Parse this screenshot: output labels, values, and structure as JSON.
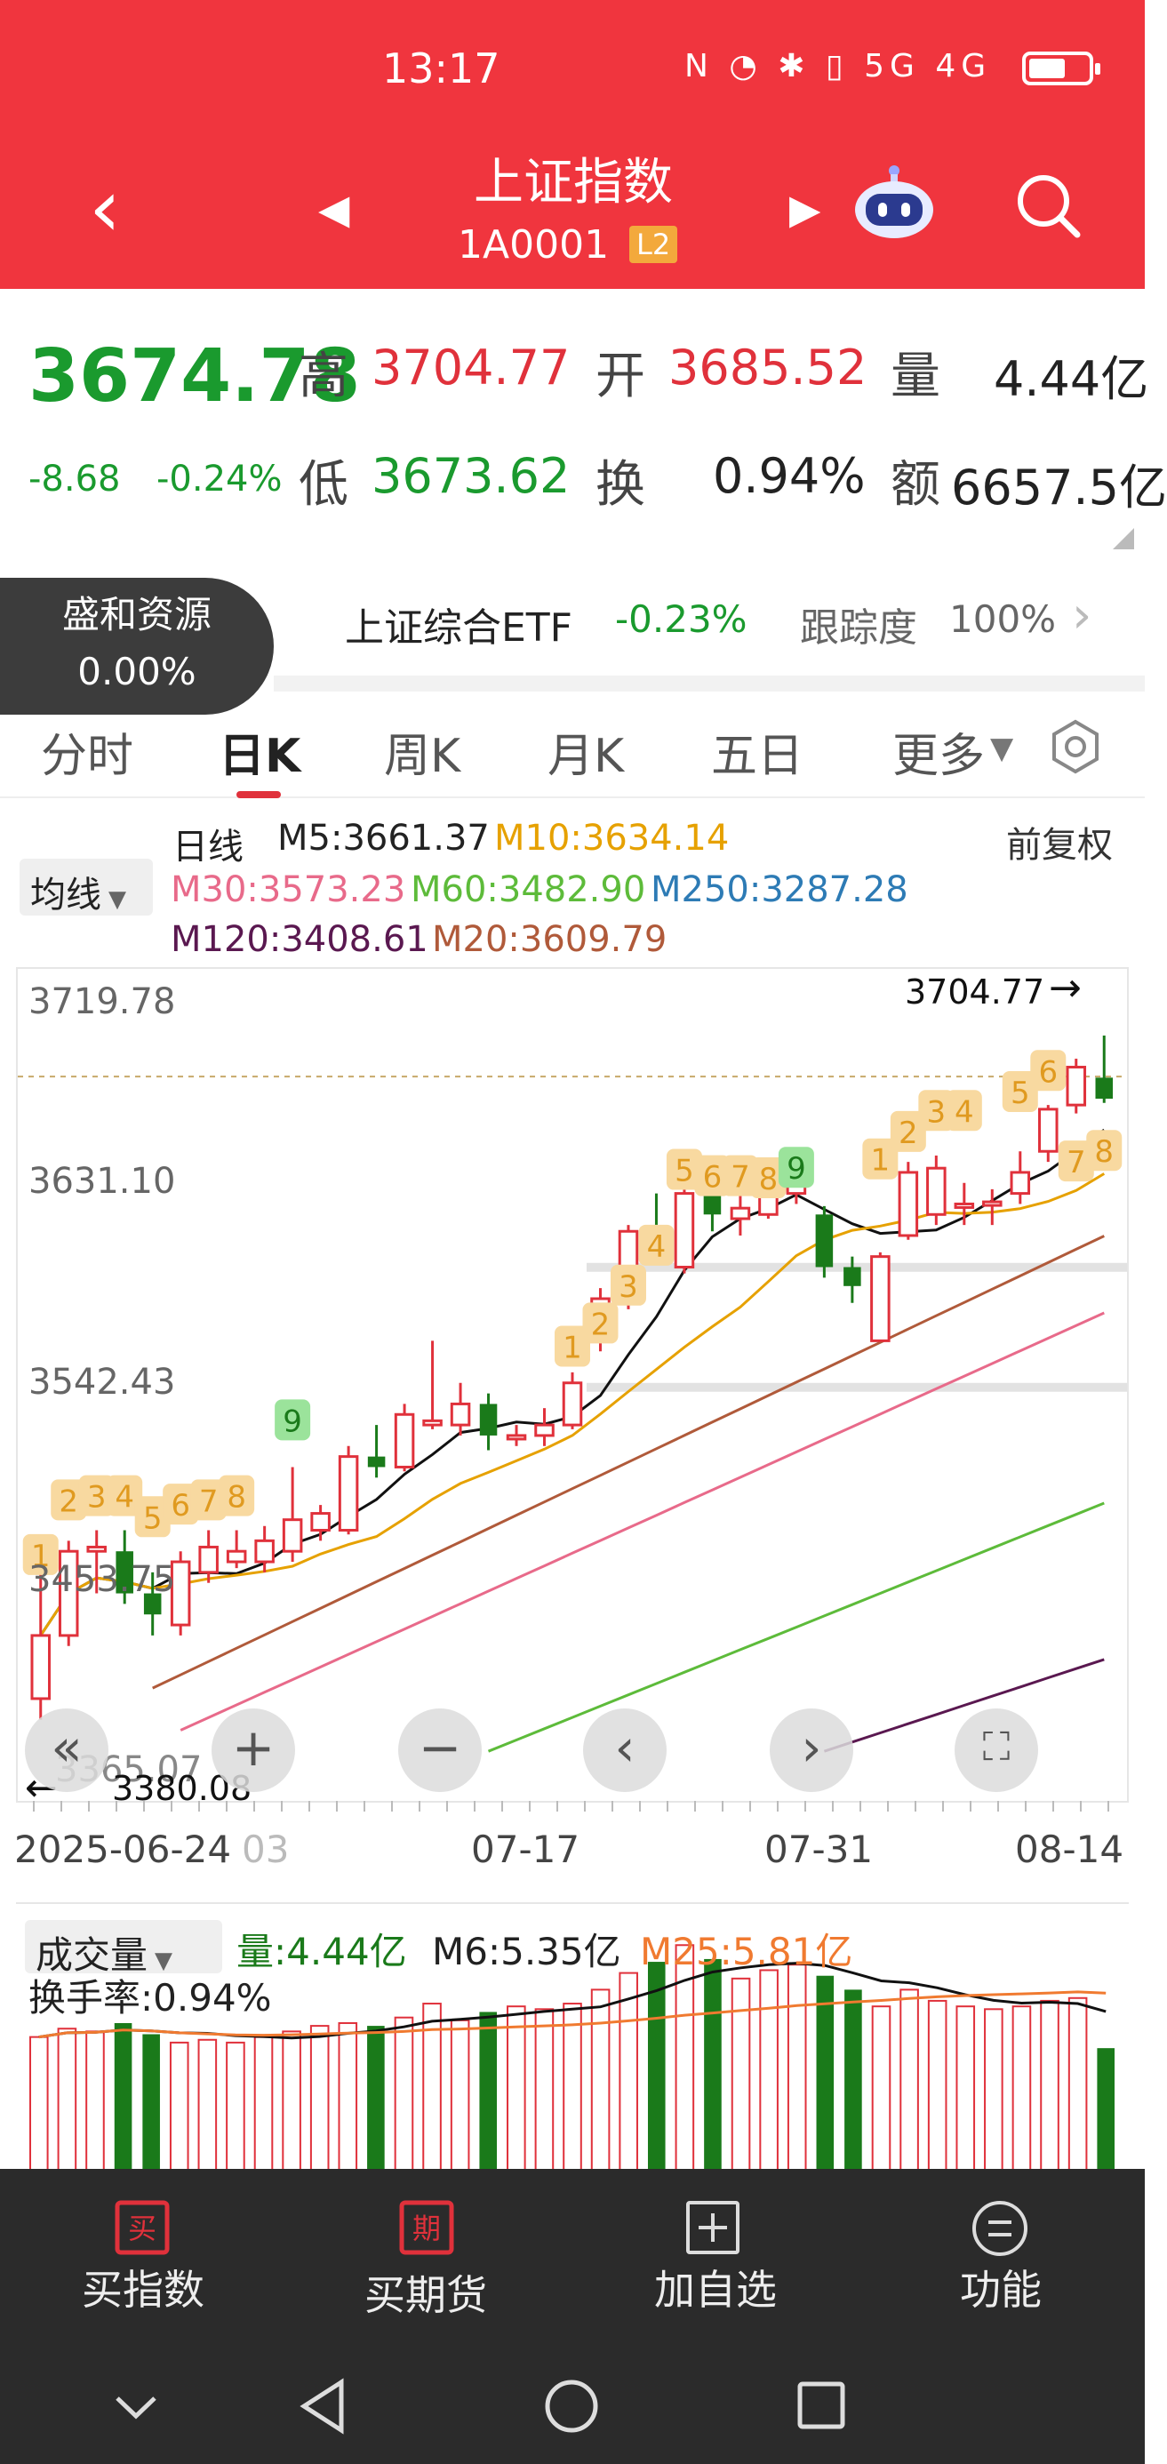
{
  "status_bar": {
    "time": "13:17",
    "icons": "N ◔ ✱ ▯ 5G 4G"
  },
  "header": {
    "title": "上证指数",
    "code": "1A0001",
    "badge": "L2"
  },
  "quote": {
    "price": "3674.78",
    "change": "-8.68",
    "change_pct": "-0.24%",
    "high_label": "高",
    "high": "3704.77",
    "open_label": "开",
    "open": "3685.52",
    "volume_label": "量",
    "volume": "4.44亿",
    "low_label": "低",
    "low": "3673.62",
    "turnover_label": "换",
    "turnover": "0.94%",
    "amount_label": "额",
    "amount": "6657.5亿"
  },
  "etf": {
    "badge_name": "盛和资源",
    "badge_pct": "0.00%",
    "name": "上证综合ETF",
    "change": "-0.23%",
    "tracking_label": "跟踪度",
    "tracking": "100%"
  },
  "tabs": [
    "分时",
    "日K",
    "周K",
    "月K",
    "五日",
    "更多"
  ],
  "indicators": {
    "period": "日线",
    "ma_selector": "均线",
    "adjust": "前复权",
    "m5": "M5:3661.37",
    "m10": "M10:3634.14",
    "m30": "M30:3573.23",
    "m60": "M60:3482.90",
    "m250": "M250:3287.28",
    "m120": "M120:3408.61",
    "m20": "M20:3609.79"
  },
  "chart_data": {
    "type": "candlestick",
    "y_ticks": [
      "3719.78",
      "3631.10",
      "3542.43",
      "3453.75",
      "3365.07"
    ],
    "x_ticks": [
      "2025-06-24",
      "03",
      "07-17",
      "07-31",
      "08-14"
    ],
    "max_label": "3704.77",
    "min_label": "3380.08",
    "ylim": [
      3365.07,
      3719.78
    ],
    "candles": [
      [
        3390,
        3420,
        3380,
        3455
      ],
      [
        3420,
        3460,
        3415,
        3465
      ],
      [
        3460,
        3462,
        3440,
        3470
      ],
      [
        3460,
        3440,
        3435,
        3470
      ],
      [
        3440,
        3430,
        3420,
        3450
      ],
      [
        3425,
        3455,
        3420,
        3460
      ],
      [
        3450,
        3462,
        3445,
        3470
      ],
      [
        3455,
        3460,
        3452,
        3470
      ],
      [
        3455,
        3465,
        3450,
        3472
      ],
      [
        3460,
        3475,
        3455,
        3500
      ],
      [
        3470,
        3478,
        3465,
        3482
      ],
      [
        3470,
        3505,
        3468,
        3510
      ],
      [
        3505,
        3500,
        3495,
        3520
      ],
      [
        3500,
        3525,
        3498,
        3530
      ],
      [
        3520,
        3522,
        3518,
        3560
      ],
      [
        3520,
        3530,
        3515,
        3540
      ],
      [
        3530,
        3515,
        3508,
        3535
      ],
      [
        3515,
        3515,
        3510,
        3520
      ],
      [
        3515,
        3520,
        3510,
        3528
      ],
      [
        3520,
        3540,
        3518,
        3545
      ],
      [
        3560,
        3580,
        3555,
        3585
      ],
      [
        3580,
        3612,
        3575,
        3615
      ],
      [
        3612,
        3605,
        3598,
        3630
      ],
      [
        3595,
        3630,
        3592,
        3632
      ],
      [
        3630,
        3620,
        3612,
        3635
      ],
      [
        3618,
        3623,
        3610,
        3630
      ],
      [
        3620,
        3636,
        3618,
        3638
      ],
      [
        3630,
        3638,
        3625,
        3652
      ],
      [
        3620,
        3595,
        3590,
        3624
      ],
      [
        3595,
        3586,
        3578,
        3600
      ],
      [
        3560,
        3600,
        3560,
        3602
      ],
      [
        3610,
        3640,
        3608,
        3645
      ],
      [
        3620,
        3642,
        3615,
        3648
      ],
      [
        3625,
        3625,
        3615,
        3635
      ],
      [
        3626,
        3626,
        3615,
        3632
      ],
      [
        3630,
        3640,
        3625,
        3650
      ],
      [
        3650,
        3670,
        3645,
        3672
      ],
      [
        3672,
        3690,
        3668,
        3694
      ],
      [
        3685,
        3675,
        3673,
        3705
      ]
    ],
    "labels": [
      "1",
      "2",
      "3",
      "4",
      "5",
      "6",
      "7",
      "8",
      "9",
      "1",
      "2",
      "3",
      "4",
      "5",
      "6",
      "7",
      "8",
      "9",
      "1",
      "2",
      "3",
      "4",
      "5",
      "6",
      "7",
      "8"
    ],
    "volume": {
      "selector": "成交量",
      "amount": "量:4.44亿",
      "m6": "M6:5.35亿",
      "m25": "M25:5.81亿",
      "turnover": "换手率:0.94%"
    }
  },
  "actions": [
    "买指数",
    "买期货",
    "加自选",
    "功能"
  ],
  "colors": {
    "header": "#f0353e",
    "up": "#e0313b",
    "down": "#1a7a1a"
  }
}
